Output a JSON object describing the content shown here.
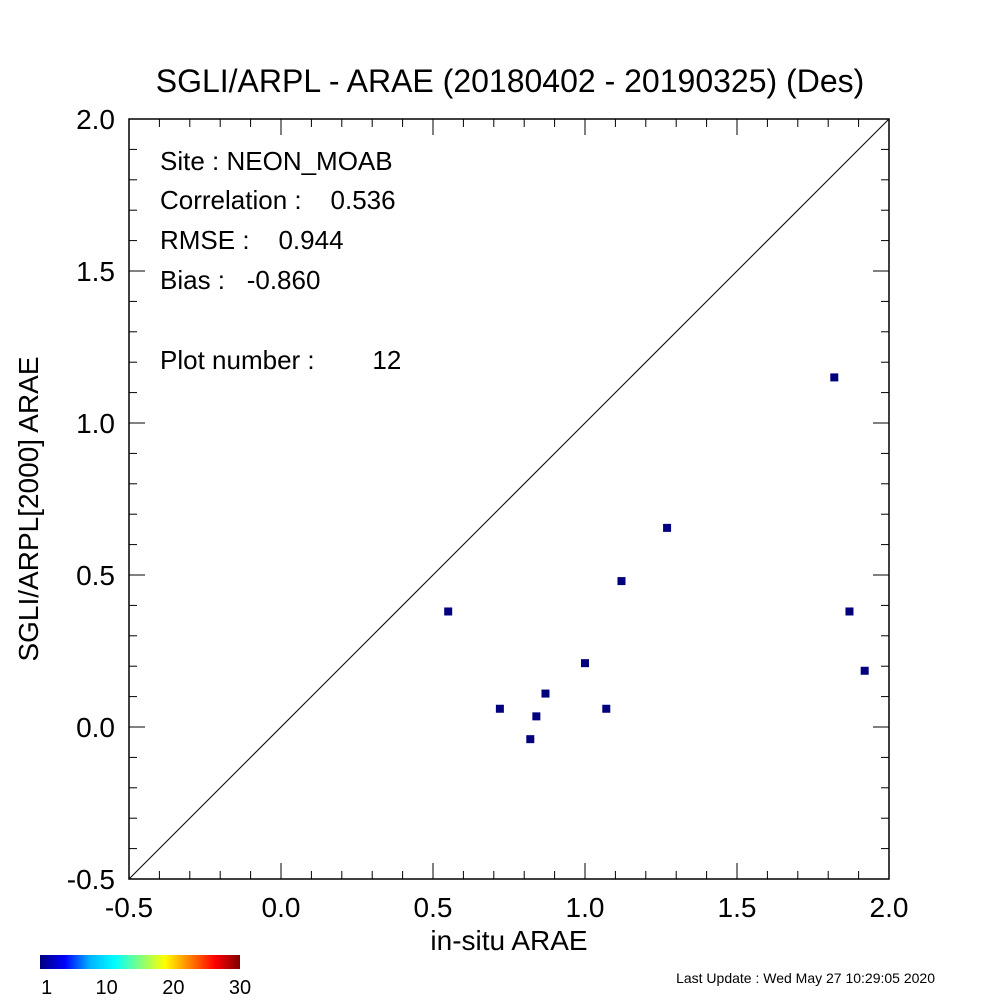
{
  "chart_data": {
    "type": "scatter",
    "title": "SGLI/ARPL - ARAE (20180402 - 20190325) (Des)",
    "xlabel": "in-situ ARAE",
    "ylabel": "SGLI/ARPL[2000]    ARAE",
    "xlim": [
      -0.5,
      2.0
    ],
    "ylim": [
      -0.5,
      2.0
    ],
    "x_ticks": [
      "-0.5",
      "0.0",
      "0.5",
      "1.0",
      "1.5",
      "2.0"
    ],
    "y_ticks": [
      "-0.5",
      "0.0",
      "0.5",
      "1.0",
      "1.5",
      "2.0"
    ],
    "reference_line": "1:1",
    "grid": false,
    "marker_color": "#00007f",
    "points": [
      {
        "x": 0.55,
        "y": 0.38
      },
      {
        "x": 0.72,
        "y": 0.06
      },
      {
        "x": 0.82,
        "y": -0.04
      },
      {
        "x": 0.84,
        "y": 0.035
      },
      {
        "x": 0.87,
        "y": 0.11
      },
      {
        "x": 1.0,
        "y": 0.21
      },
      {
        "x": 1.07,
        "y": 0.06
      },
      {
        "x": 1.12,
        "y": 0.48
      },
      {
        "x": 1.27,
        "y": 0.655
      },
      {
        "x": 1.82,
        "y": 1.15
      },
      {
        "x": 1.87,
        "y": 0.38
      },
      {
        "x": 1.92,
        "y": 0.185
      }
    ],
    "stats": {
      "site": "Site : NEON_MOAB",
      "correlation": "Correlation :    0.536",
      "rmse": "RMSE :    0.944",
      "bias": "Bias :   -0.860",
      "plot_number": "Plot number :        12"
    },
    "colorbar": {
      "colors": [
        "#00007f",
        "#0000ff",
        "#00b4ff",
        "#00ffff",
        "#7fff7f",
        "#ffff00",
        "#ff7f00",
        "#ff0000",
        "#7f0000"
      ],
      "labels": [
        "1",
        "10",
        "20",
        "30"
      ],
      "label_values": [
        1,
        10,
        20,
        30
      ],
      "range": [
        0,
        30
      ]
    },
    "last_update": "Last Update : Wed May 27 10:29:05 2020"
  }
}
